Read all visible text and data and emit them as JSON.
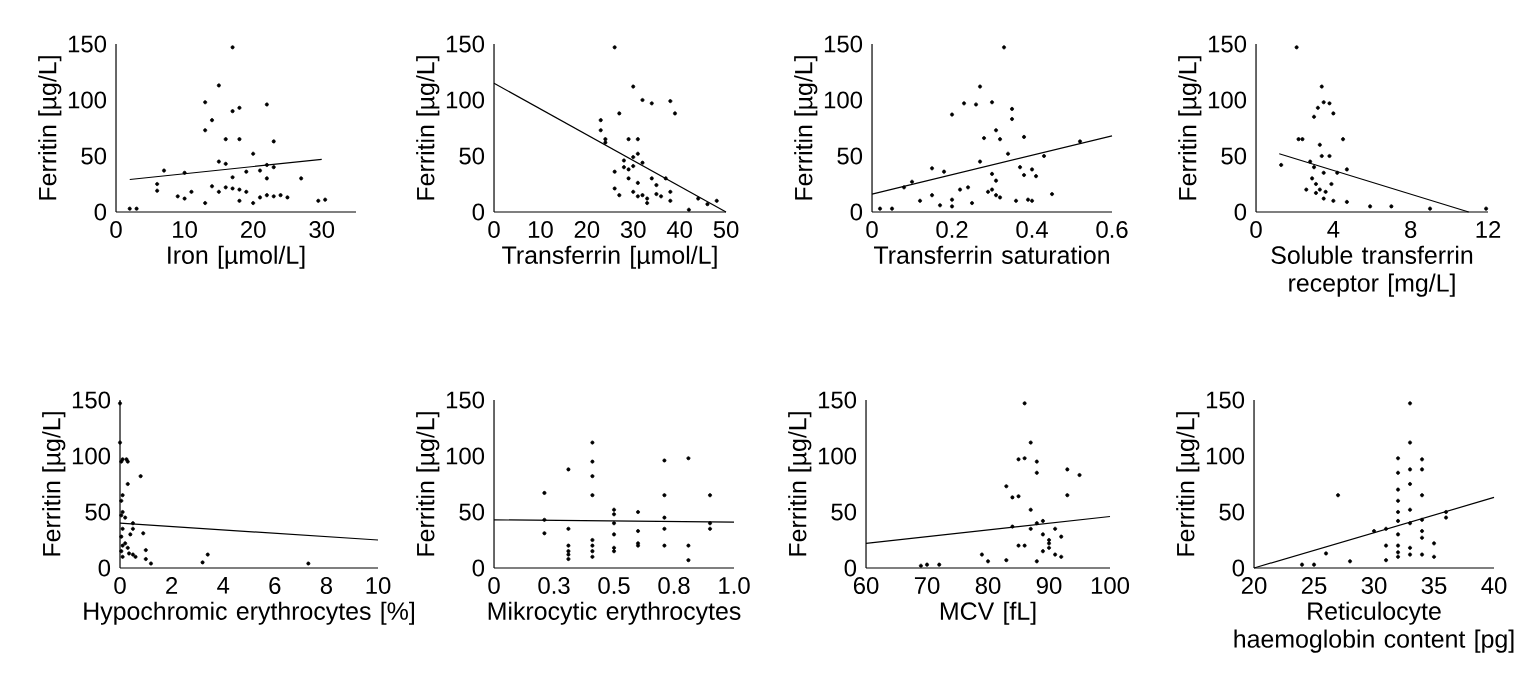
{
  "chart_data": [
    {
      "type": "scatter",
      "xlabel": "Iron [µmol/L]",
      "ylabel": "Ferritin [µg/L]",
      "xlim": [
        0,
        35
      ],
      "ylim": [
        0,
        150
      ],
      "xticks": [
        0,
        10,
        20,
        30
      ],
      "yticks": [
        0,
        50,
        100,
        150
      ],
      "series": [
        {
          "marker": "circle",
          "color": "#000000",
          "x": [
            2,
            3,
            6,
            6,
            7,
            9,
            10,
            10,
            11,
            13,
            13,
            13,
            14,
            14,
            15,
            15,
            15,
            16,
            16,
            16,
            17,
            17,
            17,
            17,
            18,
            18,
            18,
            18,
            19,
            19,
            20,
            20,
            21,
            21,
            22,
            22,
            22,
            22,
            23,
            23,
            23,
            24,
            25,
            27,
            29.5,
            30.5
          ],
          "values": [
            3,
            3,
            25,
            19,
            37,
            14,
            35,
            12,
            18,
            8,
            98,
            73,
            23,
            82,
            113,
            45,
            18,
            65,
            43,
            22,
            147,
            90,
            21,
            31,
            20,
            10,
            93,
            65,
            18,
            36,
            8,
            52,
            37,
            13,
            96,
            42,
            30,
            15,
            40,
            63,
            14,
            15,
            13,
            30,
            10,
            11
          ]
        },
        {
          "type": "line",
          "marker": "none",
          "color": "#000000",
          "x": [
            2,
            30
          ],
          "values": [
            29,
            47
          ]
        }
      ]
    },
    {
      "type": "scatter",
      "xlabel": "Transferrin [µmol/L]",
      "ylabel": "Ferritin [µg/L]",
      "xlim": [
        0,
        50
      ],
      "ylim": [
        0,
        150
      ],
      "xticks": [
        0,
        10,
        20,
        30,
        40,
        50
      ],
      "yticks": [
        0,
        50,
        100,
        150
      ],
      "series": [
        {
          "marker": "circle",
          "color": "#000000",
          "x": [
            23,
            23,
            24,
            24,
            26,
            26,
            26,
            27,
            27,
            28,
            28,
            29,
            29,
            29,
            30,
            30,
            30,
            30,
            31,
            31,
            31,
            31,
            32,
            32,
            32,
            33,
            33,
            34,
            34,
            35,
            35,
            36,
            37,
            38,
            38,
            38,
            39,
            42,
            44,
            46,
            48
          ],
          "values": [
            82,
            73,
            65,
            62,
            147,
            36,
            21,
            88,
            15,
            46,
            40,
            38,
            30,
            65,
            112,
            49,
            41,
            18,
            65,
            52,
            26,
            14,
            100,
            44,
            15,
            12,
            8,
            97,
            30,
            24,
            16,
            14,
            30,
            99,
            18,
            10,
            88,
            2,
            12,
            7,
            10
          ]
        },
        {
          "type": "line",
          "marker": "none",
          "color": "#000000",
          "x": [
            0,
            50
          ],
          "values": [
            115,
            0
          ]
        }
      ]
    },
    {
      "type": "scatter",
      "xlabel": "Transferrin saturation",
      "ylabel": "Ferritin [µg/L]",
      "xlim": [
        0,
        0.6
      ],
      "ylim": [
        0,
        150
      ],
      "xticks": [
        0,
        0.2,
        0.4,
        0.6
      ],
      "yticks": [
        0,
        50,
        100,
        150
      ],
      "series": [
        {
          "marker": "circle",
          "color": "#000000",
          "x": [
            0.02,
            0.05,
            0.08,
            0.1,
            0.12,
            0.15,
            0.15,
            0.17,
            0.18,
            0.2,
            0.2,
            0.2,
            0.22,
            0.23,
            0.24,
            0.25,
            0.26,
            0.27,
            0.27,
            0.28,
            0.29,
            0.3,
            0.3,
            0.3,
            0.31,
            0.31,
            0.31,
            0.32,
            0.32,
            0.33,
            0.34,
            0.35,
            0.35,
            0.36,
            0.37,
            0.38,
            0.38,
            0.39,
            0.4,
            0.4,
            0.41,
            0.43,
            0.45,
            0.52
          ],
          "values": [
            3,
            3,
            22,
            27,
            10,
            15,
            39,
            6,
            36,
            87,
            11,
            5,
            20,
            97,
            22,
            8,
            96,
            112,
            45,
            66,
            18,
            98,
            34,
            20,
            73,
            28,
            15,
            65,
            13,
            147,
            52,
            92,
            83,
            10,
            40,
            67,
            33,
            11,
            38,
            10,
            32,
            50,
            16,
            63
          ]
        },
        {
          "type": "line",
          "marker": "none",
          "color": "#000000",
          "x": [
            0,
            0.6
          ],
          "values": [
            16,
            68
          ]
        }
      ]
    },
    {
      "type": "scatter",
      "xlabel": "Soluble transferrin receptor [mg/L]",
      "ylabel": "Ferritin [µg/L]",
      "xlim": [
        0,
        12
      ],
      "ylim": [
        0,
        150
      ],
      "xticks": [
        0,
        4,
        8,
        12
      ],
      "yticks": [
        0,
        50,
        100,
        150
      ],
      "series": [
        {
          "marker": "circle",
          "color": "#000000",
          "x": [
            1.3,
            2.1,
            2.2,
            2.4,
            2.6,
            2.8,
            2.9,
            3,
            3,
            3.1,
            3.1,
            3.2,
            3.3,
            3.3,
            3.4,
            3.4,
            3.5,
            3.5,
            3.5,
            3.6,
            3.8,
            3.8,
            3.9,
            4,
            4,
            4.2,
            4.5,
            4.7,
            4.7,
            5.9,
            7,
            9,
            11.9
          ],
          "values": [
            42,
            147,
            65,
            65,
            20,
            45,
            30,
            85,
            40,
            25,
            17,
            93,
            60,
            20,
            112,
            50,
            35,
            12,
            98,
            18,
            97,
            50,
            25,
            10,
            88,
            35,
            65,
            38,
            9,
            5,
            5,
            3,
            3
          ]
        },
        {
          "type": "line",
          "marker": "none",
          "color": "#000000",
          "x": [
            1.2,
            11
          ],
          "values": [
            52,
            0
          ]
        }
      ]
    },
    {
      "type": "scatter",
      "xlabel": "Hypochromic erythrocytes [%]",
      "ylabel": "Ferritin [µg/L]",
      "xlim": [
        0,
        10
      ],
      "ylim": [
        0,
        150
      ],
      "xticks": [
        0,
        2,
        4,
        6,
        8,
        10
      ],
      "yticks": [
        0,
        50,
        100,
        150
      ],
      "series": [
        {
          "marker": "circle",
          "color": "#000000",
          "x": [
            0,
            0,
            0.05,
            0.1,
            0.1,
            0.05,
            0.1,
            0.05,
            0.1,
            0.05,
            0.1,
            0.05,
            0.1,
            0.2,
            0.2,
            0.25,
            0.3,
            0.3,
            0.3,
            0.35,
            0.4,
            0.5,
            0.5,
            0.5,
            0.6,
            0.8,
            0.9,
            1,
            1,
            1.2,
            3.2,
            3.4,
            7.3
          ],
          "values": [
            147,
            112,
            95,
            97,
            65,
            60,
            50,
            47,
            35,
            28,
            20,
            15,
            10,
            22,
            45,
            97,
            95,
            75,
            18,
            13,
            30,
            40,
            35,
            12,
            10,
            82,
            31,
            16,
            8,
            4,
            5,
            12,
            4
          ]
        },
        {
          "type": "line",
          "marker": "none",
          "color": "#000000",
          "x": [
            0,
            10
          ],
          "values": [
            40,
            25
          ]
        }
      ]
    },
    {
      "type": "scatter",
      "xlabel": "Mikrocytic erythrocytes",
      "ylabel": "Ferritin [µg/L]",
      "xlim": [
        0,
        1
      ],
      "ylim": [
        0,
        150
      ],
      "xticks": [
        0,
        {
          "value": 0.25,
          "label": "0.3"
        },
        0.5,
        {
          "value": 0.75,
          "label": "0.8"
        },
        {
          "value": 1,
          "label": "1.0"
        }
      ],
      "yticks": [
        0,
        50,
        100,
        150
      ],
      "series": [
        {
          "marker": "circle",
          "color": "#000000",
          "x": [
            0.21,
            0.21,
            0.21,
            0.31,
            0.31,
            0.31,
            0.31,
            0.31,
            0.31,
            0.41,
            0.41,
            0.41,
            0.41,
            0.41,
            0.41,
            0.41,
            0.41,
            0.5,
            0.5,
            0.5,
            0.5,
            0.5,
            0.5,
            0.6,
            0.6,
            0.6,
            0.6,
            0.71,
            0.71,
            0.71,
            0.71,
            0.71,
            0.81,
            0.81,
            0.81,
            0.9,
            0.9,
            0.9
          ],
          "values": [
            67,
            43,
            31,
            88,
            35,
            20,
            15,
            12,
            8,
            112,
            95,
            82,
            65,
            25,
            20,
            15,
            10,
            52,
            48,
            40,
            30,
            18,
            15,
            50,
            33,
            22,
            20,
            96,
            65,
            45,
            35,
            20,
            98,
            20,
            7,
            65,
            40,
            35
          ]
        },
        {
          "type": "line",
          "marker": "none",
          "color": "#000000",
          "x": [
            0,
            1
          ],
          "values": [
            43,
            41
          ]
        }
      ]
    },
    {
      "type": "scatter",
      "xlabel": "MCV [fL]",
      "ylabel": "Ferritin [µg/L]",
      "xlim": [
        60,
        100
      ],
      "ylim": [
        0,
        150
      ],
      "xticks": [
        60,
        70,
        80,
        90,
        100
      ],
      "yticks": [
        0,
        50,
        100,
        150
      ],
      "series": [
        {
          "marker": "circle",
          "color": "#000000",
          "x": [
            69,
            70,
            72,
            79,
            80,
            83,
            83,
            84,
            84,
            85,
            85,
            85,
            86,
            86,
            86,
            87,
            87,
            87,
            88,
            88,
            88,
            88,
            89,
            89,
            89,
            90,
            90,
            91,
            91,
            92,
            93,
            93,
            95,
            92,
            90
          ],
          "values": [
            2,
            3,
            3,
            12,
            6,
            73,
            7,
            37,
            63,
            97,
            20,
            64,
            147,
            98,
            20,
            112,
            52,
            35,
            95,
            85,
            40,
            6,
            42,
            30,
            15,
            25,
            18,
            12,
            35,
            10,
            88,
            65,
            83,
            28,
            22
          ]
        },
        {
          "type": "line",
          "marker": "none",
          "color": "#000000",
          "x": [
            60,
            100
          ],
          "values": [
            22,
            46
          ]
        }
      ]
    },
    {
      "type": "scatter",
      "xlabel": "Reticulocyte haemoglobin content [pg]",
      "ylabel": "Ferritin [µg/L]",
      "xlim": [
        20,
        40
      ],
      "ylim": [
        0,
        150
      ],
      "xticks": [
        20,
        25,
        30,
        35,
        40
      ],
      "yticks": [
        0,
        50,
        100,
        150
      ],
      "series": [
        {
          "marker": "circle",
          "color": "#000000",
          "x": [
            24,
            25,
            26,
            27,
            28,
            30,
            31,
            31,
            31,
            32,
            32,
            32,
            32,
            32,
            32,
            32,
            32,
            32,
            32,
            33,
            33,
            33,
            33,
            33,
            33,
            33,
            33,
            34,
            34,
            34,
            34,
            34,
            34,
            34,
            35,
            35,
            36,
            36
          ],
          "values": [
            3,
            3,
            13,
            65,
            6,
            33,
            35,
            20,
            7,
            98,
            85,
            70,
            60,
            50,
            42,
            30,
            20,
            14,
            10,
            147,
            112,
            88,
            75,
            52,
            40,
            18,
            12,
            97,
            88,
            65,
            43,
            33,
            27,
            12,
            22,
            10,
            50,
            45
          ]
        },
        {
          "type": "line",
          "marker": "none",
          "color": "#000000",
          "x": [
            20,
            40
          ],
          "values": [
            0,
            63
          ]
        }
      ]
    }
  ]
}
